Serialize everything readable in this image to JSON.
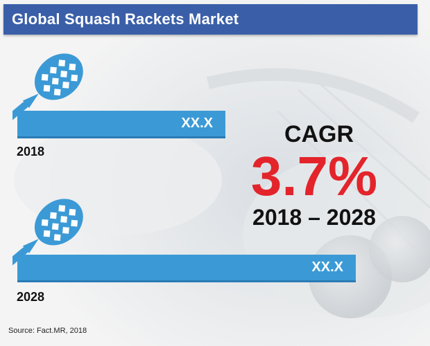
{
  "title": "Global Squash Rackets Market",
  "source": "Source: Fact.MR, 2018",
  "cagr": {
    "label": "CAGR",
    "value": "3.7%",
    "period": "2018 – 2028"
  },
  "colors": {
    "title_bg": "#3a5fa8",
    "bar": "#3b9ad6",
    "cagr_value": "#e3242b",
    "racket": "#3b9ad6"
  },
  "icons": [
    "squash-racket-icon"
  ],
  "chart_data": {
    "type": "bar",
    "orientation": "horizontal",
    "categories": [
      "2018",
      "2028"
    ],
    "bar_labels": [
      "XX.X",
      "XX.X"
    ],
    "relative_lengths": [
      0.6,
      1.0
    ],
    "title": "Global Squash Rackets Market"
  }
}
